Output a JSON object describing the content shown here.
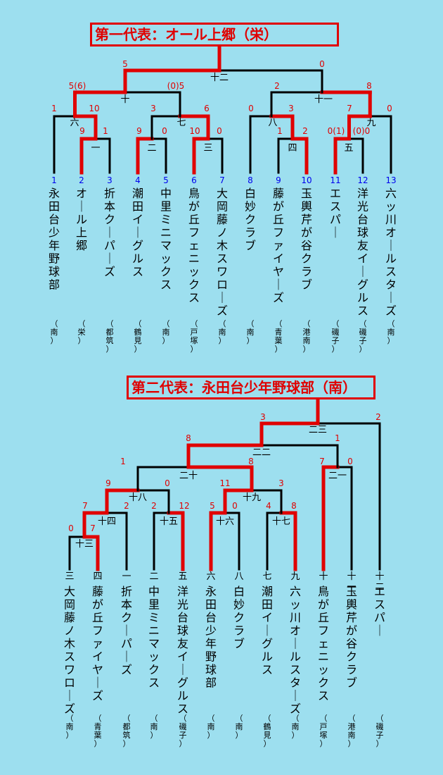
{
  "tournament1": {
    "title": "第一代表：オール上郷（栄）",
    "teams": [
      {
        "num": "1",
        "name": "永田台少年野球部",
        "area": "南"
      },
      {
        "num": "2",
        "name": "オール上郷",
        "area": "栄"
      },
      {
        "num": "3",
        "name": "折本クーパーズ",
        "area": "都筑"
      },
      {
        "num": "4",
        "name": "潮田イーグルス",
        "area": "鶴見"
      },
      {
        "num": "5",
        "name": "中里ミニマックス",
        "area": "南"
      },
      {
        "num": "6",
        "name": "鳥が丘フェニックス",
        "area": "戸塚"
      },
      {
        "num": "7",
        "name": "大岡藤ノ木スワローズ",
        "area": "南"
      },
      {
        "num": "8",
        "name": "白妙クラブ",
        "area": "南"
      },
      {
        "num": "9",
        "name": "藤が丘ファイヤーズ",
        "area": "青葉"
      },
      {
        "num": "10",
        "name": "玉輿芹が谷クラブ",
        "area": "港南"
      },
      {
        "num": "11",
        "name": "エスパー",
        "area": "磯子"
      },
      {
        "num": "12",
        "name": "洋光台球友イーグルス",
        "area": "磯子"
      },
      {
        "num": "13",
        "name": "六ッ川オールスターズ",
        "area": "南"
      }
    ],
    "games": [
      {
        "label": "一",
        "s1": "9",
        "s2": "1"
      },
      {
        "label": "二",
        "s1": "9",
        "s2": "0"
      },
      {
        "label": "三",
        "s1": "10",
        "s2": "0"
      },
      {
        "label": "四",
        "s1": "1",
        "s2": "2"
      },
      {
        "label": "五",
        "s1": "0(1)",
        "s2": "(0)0"
      },
      {
        "label": "六",
        "s1": "1",
        "s2": "10"
      },
      {
        "label": "七",
        "s1": "3",
        "s2": "6"
      },
      {
        "label": "八",
        "s1": "0",
        "s2": "3"
      },
      {
        "label": "九",
        "s1": "7",
        "s2": "0"
      },
      {
        "label": "十",
        "s1": "5(6)",
        "s2": "(0)5"
      },
      {
        "label": "十一",
        "s1": "2",
        "s2": "8"
      },
      {
        "label": "十二",
        "s1": "5",
        "s2": "0"
      }
    ]
  },
  "tournament2": {
    "title": "第二代表：永田台少年野球部（南）",
    "teams": [
      {
        "num": "三",
        "name": "大岡藤ノ木スワローズ",
        "area": "南"
      },
      {
        "num": "四",
        "name": "藤が丘ファイヤーズ",
        "area": "青葉"
      },
      {
        "num": "一",
        "name": "折本クーパーズ",
        "area": "都筑"
      },
      {
        "num": "二",
        "name": "中里ミニマックス",
        "area": "南"
      },
      {
        "num": "五",
        "name": "洋光台球友イーグルス",
        "area": "磯子"
      },
      {
        "num": "六",
        "name": "永田台少年野球部",
        "area": "南"
      },
      {
        "num": "八",
        "name": "白妙クラブ",
        "area": "南"
      },
      {
        "num": "七",
        "name": "潮田イーグルス",
        "area": "鶴見"
      },
      {
        "num": "九",
        "name": "六ッ川オールスターズ",
        "area": "南"
      },
      {
        "num": "十",
        "name": "鳥が丘フェニックス",
        "area": "戸塚"
      },
      {
        "num": "十一",
        "name": "玉輿芹が谷クラブ",
        "area": "港南"
      },
      {
        "num": "十二",
        "name": "エスパー",
        "area": "磯子"
      }
    ],
    "games": [
      {
        "label": "十三",
        "s1": "0",
        "s2": "7"
      },
      {
        "label": "十四",
        "s1": "7",
        "s2": "2"
      },
      {
        "label": "十五",
        "s1": "2",
        "s2": "12"
      },
      {
        "label": "十六",
        "s1": "5",
        "s2": "0"
      },
      {
        "label": "十七",
        "s1": "4",
        "s2": "8"
      },
      {
        "label": "十八",
        "s1": "9",
        "s2": "0"
      },
      {
        "label": "十九",
        "s1": "11",
        "s2": "3"
      },
      {
        "label": "二十",
        "s1": "1",
        "s2": "8"
      },
      {
        "label": "二一",
        "s1": "7",
        "s2": "0"
      },
      {
        "label": "二二",
        "s1": "8",
        "s2": "1"
      },
      {
        "label": "二三",
        "s1": "3",
        "s2": "2"
      }
    ]
  },
  "colors": {
    "background": "#9ddfef",
    "line": "#000000",
    "winner": "#e00000",
    "score": "#e00000",
    "seed_number": "#0000ee",
    "text": "#000000"
  }
}
